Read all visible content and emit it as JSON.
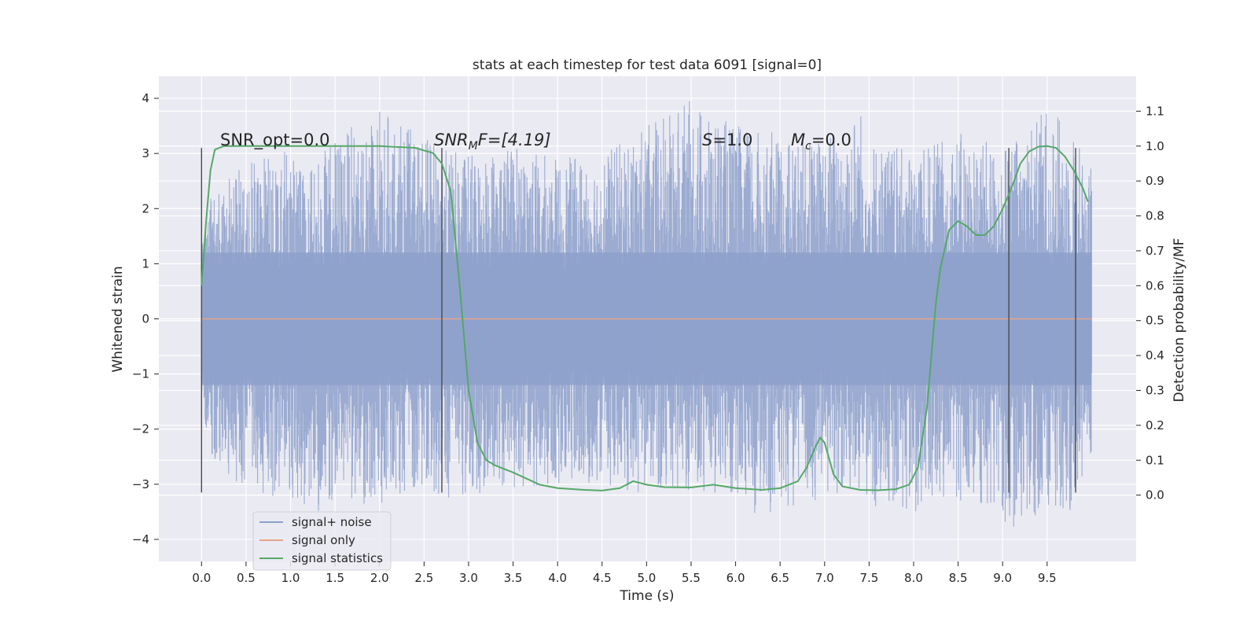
{
  "chart_data": {
    "type": "line",
    "title": "stats at each timestep for test data 6091 [signal=0]",
    "xlabel": "Time (s)",
    "ylabel": "Whitened strain",
    "ylabel_right": "Detection probability/MF",
    "xlim": [
      -0.48,
      10.5
    ],
    "ylim": [
      -4.4,
      4.4
    ],
    "ylim_right": [
      -0.19,
      1.2
    ],
    "x_ticks": [
      "0.0",
      "0.5",
      "1.0",
      "1.5",
      "2.0",
      "2.5",
      "3.0",
      "3.5",
      "4.0",
      "4.5",
      "5.0",
      "5.5",
      "6.0",
      "6.5",
      "7.0",
      "7.5",
      "8.0",
      "8.5",
      "9.0",
      "9.5"
    ],
    "y_ticks_left": [
      "−4",
      "−3",
      "−2",
      "−1",
      "0",
      "1",
      "2",
      "3",
      "4"
    ],
    "y_ticks_right": [
      "0.0",
      "0.1",
      "0.2",
      "0.3",
      "0.4",
      "0.5",
      "0.6",
      "0.7",
      "0.8",
      "0.9",
      "1.0",
      "1.1"
    ],
    "grid": true,
    "legend_position": "lower-left",
    "series": [
      {
        "name": "signal+ noise",
        "color": "#8da0cb",
        "axis": "left",
        "x_range": [
          0.0,
          10.0
        ],
        "envelope": {
          "x": [
            0.0,
            0.1,
            0.5,
            1.0,
            1.2,
            1.5,
            2.0,
            2.5,
            2.7,
            3.0,
            3.5,
            4.0,
            4.5,
            5.0,
            5.5,
            6.0,
            6.4,
            6.5,
            7.0,
            7.4,
            7.5,
            8.0,
            8.5,
            9.0,
            9.1,
            9.5,
            9.8,
            10.0
          ],
          "upper": [
            1.3,
            2.2,
            2.9,
            3.1,
            2.7,
            3.3,
            3.8,
            3.3,
            3.1,
            3.0,
            3.2,
            2.9,
            3.0,
            3.5,
            4.0,
            3.5,
            3.4,
            3.2,
            3.3,
            3.9,
            3.3,
            3.0,
            3.4,
            3.1,
            3.2,
            3.9,
            3.4,
            2.8
          ],
          "lower": [
            -1.4,
            -2.6,
            -3.1,
            -3.3,
            -3.6,
            -3.3,
            -3.4,
            -3.0,
            -3.3,
            -3.2,
            -3.1,
            -3.0,
            -3.0,
            -3.2,
            -3.1,
            -3.2,
            -3.8,
            -3.5,
            -3.3,
            -3.1,
            -3.4,
            -3.5,
            -3.3,
            -3.6,
            -3.9,
            -3.4,
            -3.5,
            -2.4
          ]
        }
      },
      {
        "name": "signal only",
        "color": "#e5a489",
        "axis": "left",
        "x": [
          0.0,
          10.0
        ],
        "y": [
          0.0,
          0.0
        ]
      },
      {
        "name": "signal statistics",
        "color": "#55a868",
        "axis": "right",
        "x": [
          0.0,
          0.05,
          0.1,
          0.15,
          0.25,
          0.5,
          1.0,
          1.5,
          2.0,
          2.4,
          2.6,
          2.7,
          2.8,
          2.9,
          3.0,
          3.1,
          3.2,
          3.3,
          3.5,
          3.8,
          4.0,
          4.3,
          4.5,
          4.7,
          4.85,
          5.0,
          5.2,
          5.5,
          5.75,
          6.0,
          6.3,
          6.5,
          6.7,
          6.8,
          6.9,
          6.95,
          7.0,
          7.1,
          7.2,
          7.4,
          7.6,
          7.8,
          7.95,
          8.05,
          8.15,
          8.25,
          8.3,
          8.4,
          8.5,
          8.6,
          8.7,
          8.8,
          8.9,
          9.0,
          9.1,
          9.2,
          9.3,
          9.4,
          9.5,
          9.6,
          9.7,
          9.8,
          9.9,
          9.96
        ],
        "y": [
          0.6,
          0.78,
          0.93,
          0.99,
          1.0,
          1.0,
          1.0,
          1.0,
          1.0,
          0.995,
          0.98,
          0.95,
          0.87,
          0.6,
          0.3,
          0.15,
          0.1,
          0.085,
          0.065,
          0.03,
          0.02,
          0.015,
          0.013,
          0.02,
          0.04,
          0.03,
          0.023,
          0.022,
          0.03,
          0.02,
          0.015,
          0.02,
          0.04,
          0.08,
          0.14,
          0.165,
          0.15,
          0.06,
          0.025,
          0.015,
          0.014,
          0.017,
          0.03,
          0.08,
          0.25,
          0.55,
          0.65,
          0.76,
          0.785,
          0.77,
          0.745,
          0.745,
          0.77,
          0.82,
          0.88,
          0.95,
          0.985,
          0.998,
          1.0,
          0.995,
          0.97,
          0.93,
          0.88,
          0.84
        ]
      }
    ],
    "vertical_lines": [
      0.0,
      2.7,
      9.07,
      9.82
    ],
    "vertical_line_range": [
      -3.15,
      3.1
    ],
    "annotations": {
      "snr_opt": "SNR_opt=0.0",
      "snr_mf_symbol": "SNR",
      "snr_mf_sub": "M",
      "snr_mf_rest": "F=[4.19]",
      "s_symbol": "S",
      "s_rest": "=1.0",
      "mc_symbol": "M",
      "mc_sub": "c",
      "mc_rest": "=0.0"
    }
  }
}
